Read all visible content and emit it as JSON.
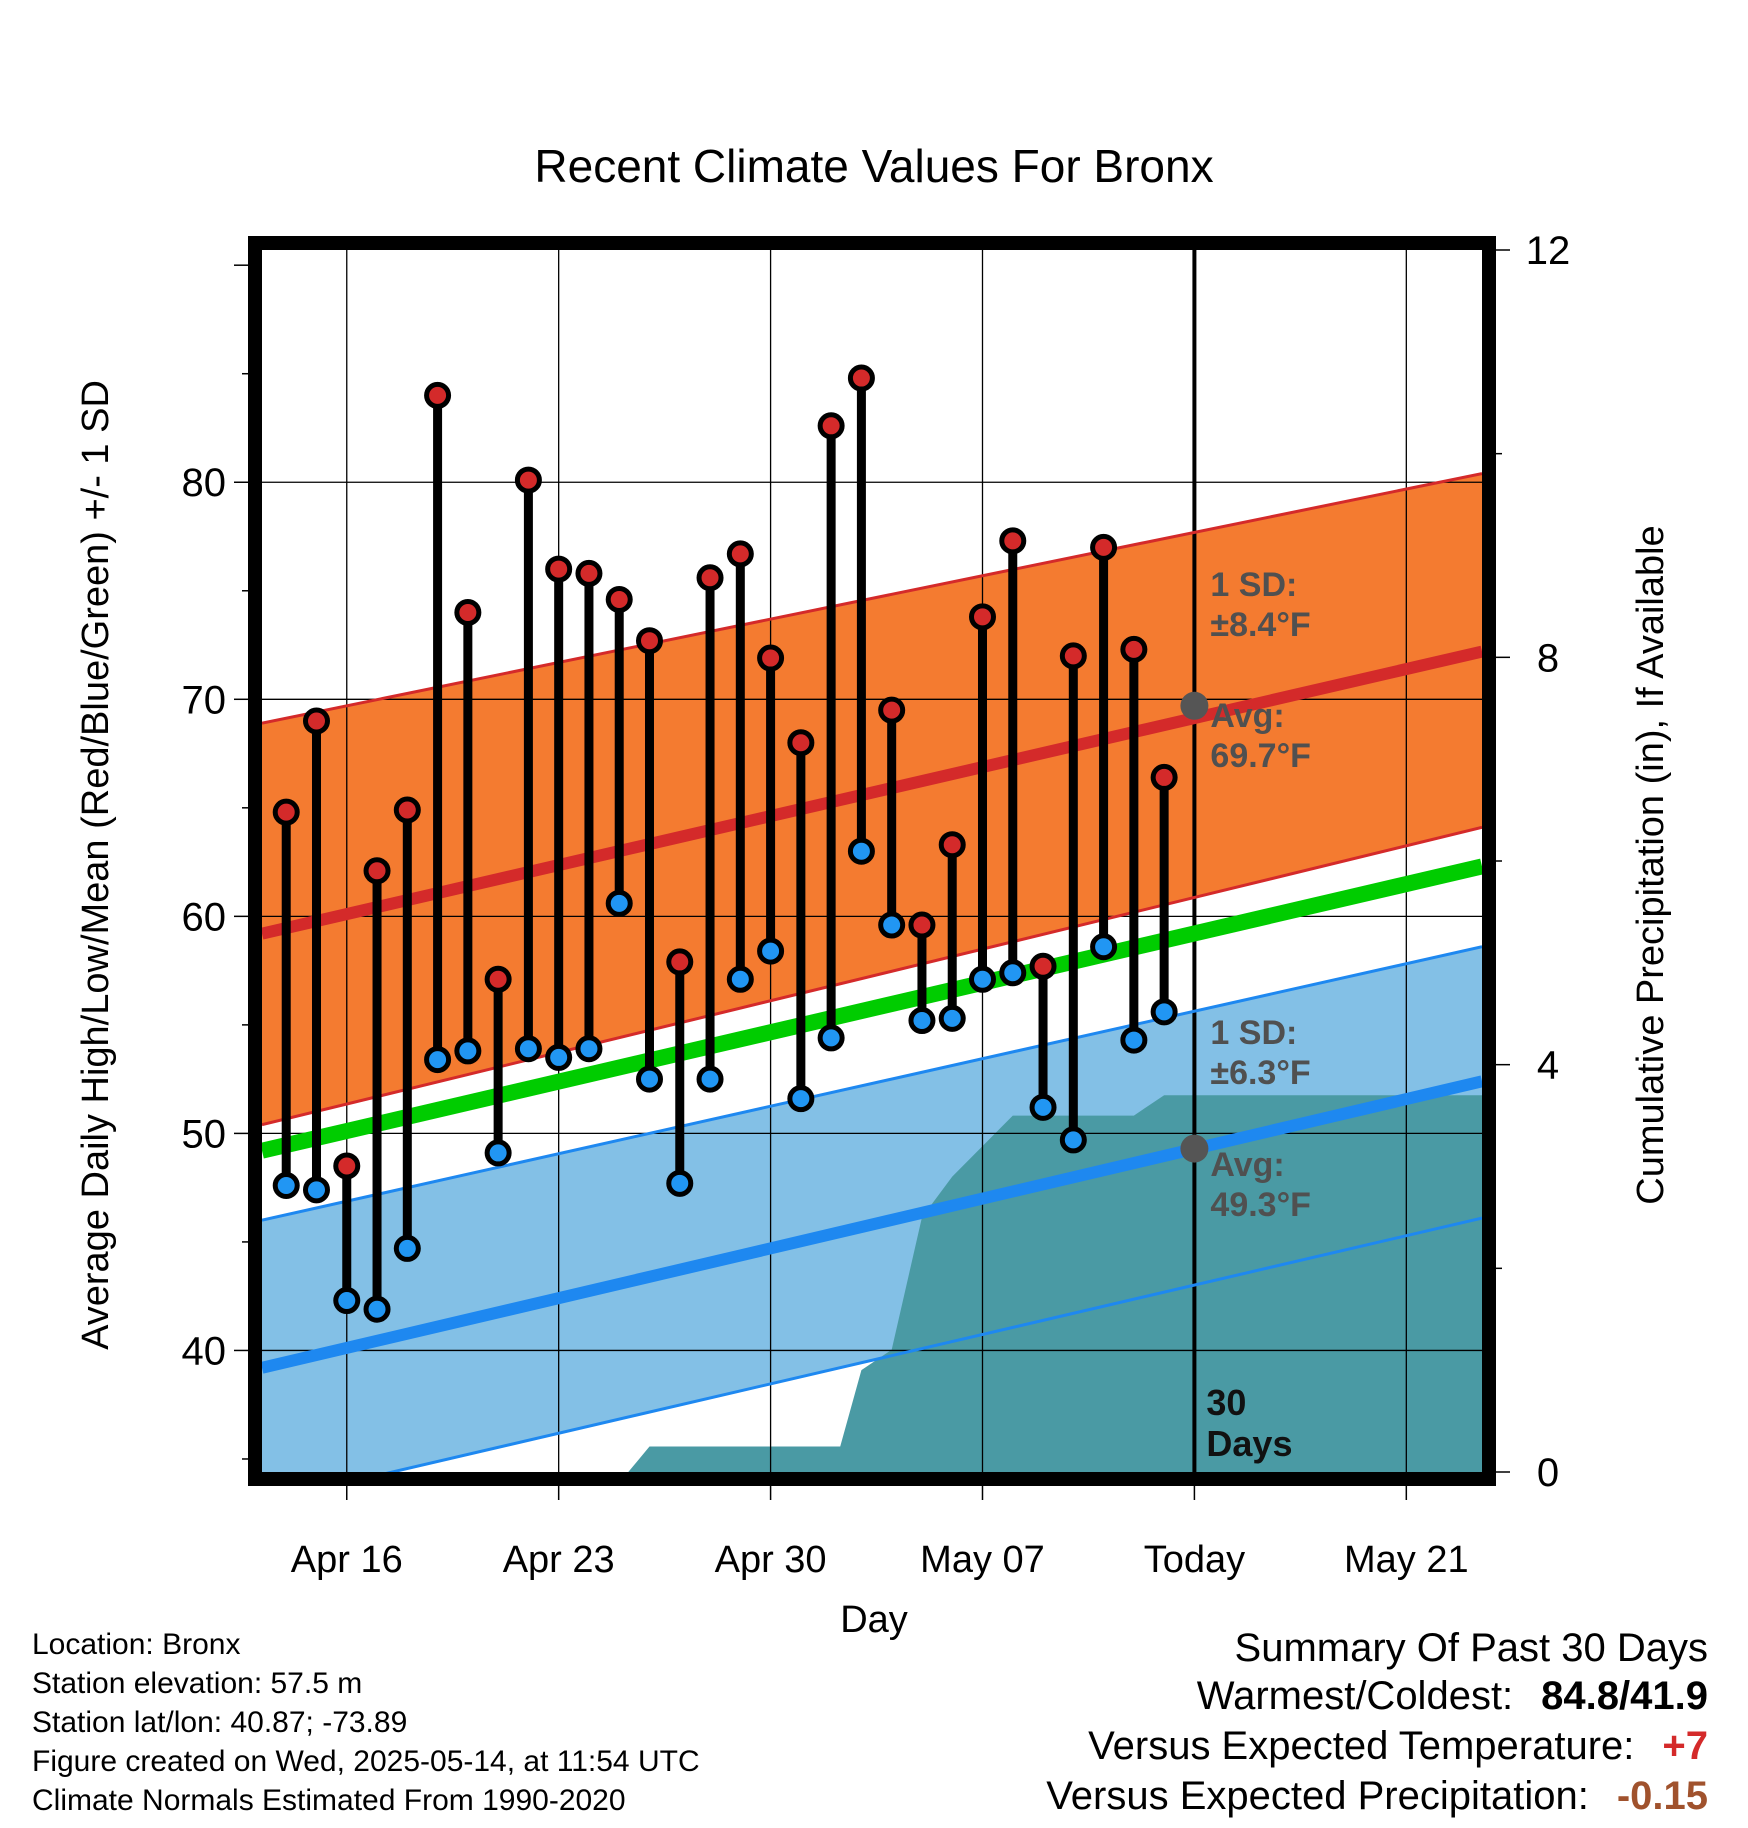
{
  "chart_data": {
    "type": "line",
    "title": "Recent Climate Values For Bronx",
    "xlabel": "Day",
    "ylabel_left": "Average Daily High/Low/Mean (Red/Blue/Green) +/- 1 SD",
    "ylabel_right": "Cumulative Precipitation (in), If Available",
    "x_ticks": [
      {
        "day": 3,
        "label": "Apr 16"
      },
      {
        "day": 10,
        "label": "Apr 23"
      },
      {
        "day": 17,
        "label": "Apr 30"
      },
      {
        "day": 24,
        "label": "May 07"
      },
      {
        "day": 31,
        "label": "Today"
      },
      {
        "day": 38,
        "label": "May 21"
      }
    ],
    "xlim_days_from_apr13": [
      0.2,
      40.5
    ],
    "ylim_left": [
      34.4,
      90.7
    ],
    "y_ticks_left": [
      40,
      50,
      60,
      70,
      80
    ],
    "ylim_right": [
      0,
      12
    ],
    "y_ticks_right": [
      0,
      4,
      8,
      12
    ],
    "start_date": "Apr 13",
    "observed": {
      "days": [
        1,
        2,
        3,
        4,
        5,
        6,
        7,
        8,
        9,
        10,
        11,
        12,
        13,
        14,
        15,
        16,
        17,
        18,
        19,
        20,
        21,
        22,
        23,
        24,
        25,
        26,
        27,
        28,
        29,
        30
      ],
      "high": [
        64.8,
        69.0,
        48.5,
        62.1,
        64.9,
        84.0,
        74.0,
        57.1,
        80.1,
        76.0,
        75.8,
        74.6,
        72.7,
        57.9,
        75.6,
        76.7,
        71.9,
        68.0,
        82.6,
        84.8,
        69.5,
        59.6,
        63.3,
        73.8,
        77.3,
        57.7,
        72.0,
        77.0,
        72.3,
        66.4
      ],
      "low": [
        47.6,
        47.4,
        42.3,
        41.9,
        44.7,
        53.4,
        53.8,
        49.1,
        53.9,
        53.5,
        53.9,
        60.6,
        52.5,
        47.7,
        52.5,
        57.1,
        58.4,
        51.6,
        54.4,
        63.0,
        59.6,
        55.2,
        55.3,
        57.1,
        57.4,
        51.2,
        49.7,
        58.6,
        54.3,
        55.6
      ]
    },
    "normals": {
      "days": [
        0.2,
        40.5
      ],
      "high_mean": [
        59.2,
        72.2
      ],
      "high_sd_upper": [
        68.9,
        80.4
      ],
      "high_sd_lower": [
        50.4,
        64.1
      ],
      "daily_mean": [
        49.2,
        62.3
      ],
      "low_mean": [
        39.2,
        52.4
      ],
      "low_sd_upper": [
        46.0,
        58.6
      ],
      "low_sd_lower": [
        33.0,
        46.1
      ]
    },
    "precipitation_cumulative": {
      "days": [
        12.3,
        13.0,
        19.3,
        20.0,
        21.0,
        22.0,
        23.0,
        25.0,
        26.0,
        29.0,
        30.0,
        31.0,
        40.5
      ],
      "values": [
        0.0,
        0.25,
        0.25,
        1.0,
        1.2,
        2.5,
        2.9,
        3.5,
        3.5,
        3.5,
        3.7,
        3.7,
        3.7
      ]
    },
    "annotations": {
      "high_sd_title": "1 SD:",
      "high_sd_value": "±8.4°F",
      "high_avg_title": "Avg:",
      "high_avg_value": "69.7°F",
      "low_sd_title": "1 SD:",
      "low_sd_value": "±6.3°F",
      "low_avg_title": "Avg:",
      "low_avg_value": "49.3°F",
      "today_avg_high": 69.7,
      "today_avg_low": 49.3,
      "days_count": "30",
      "days_word": "Days"
    },
    "colors": {
      "high_band": "#f47b30",
      "high_line": "#d42a2a",
      "low_band": "#83c0e6",
      "low_line": "#1e88f0",
      "mean_line": "#00cc00",
      "precip": "#4a9aa4",
      "high_dot": "#d42a2a",
      "low_dot": "#2196f3",
      "annotation_text": "#505050"
    }
  },
  "footer": {
    "location": "Location: Bronx",
    "elevation": "Station elevation: 57.5 m",
    "latlon": "Station lat/lon: 40.87; -73.89",
    "created": "Figure created on Wed, 2025-05-14, at 11:54 UTC",
    "normals": "Climate Normals Estimated From 1990-2020"
  },
  "summary": {
    "heading": "Summary Of Past 30 Days",
    "warm_cold_label": "Warmest/Coldest:",
    "warm_cold_value": "84.8/41.9",
    "temp_label": "Versus Expected Temperature:",
    "temp_value": "+7",
    "temp_color": "#d42a2a",
    "precip_label": "Versus Expected Precipitation:",
    "precip_value": "-0.15",
    "precip_color": "#a0522d"
  }
}
